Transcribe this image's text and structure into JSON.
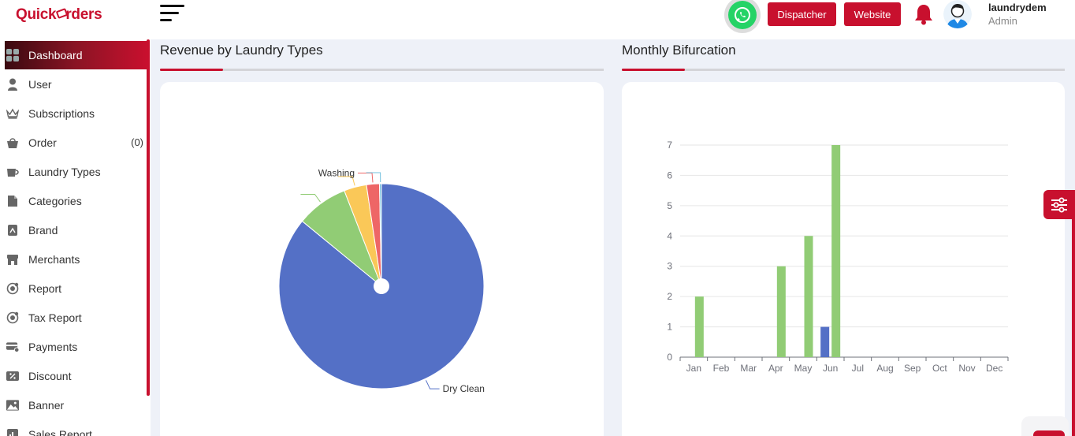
{
  "brand": {
    "logo_part1": "Quick",
    "logo_part2": "rders"
  },
  "sidebar": {
    "items": [
      {
        "label": "Dashboard",
        "icon": "dashboard-icon",
        "active": true
      },
      {
        "label": "User",
        "icon": "user-icon"
      },
      {
        "label": "Subscriptions",
        "icon": "crown-icon"
      },
      {
        "label": "Order",
        "icon": "basket-icon",
        "count": "(0)"
      },
      {
        "label": "Laundry Types",
        "icon": "cup-icon"
      },
      {
        "label": "Categories",
        "icon": "categories-icon"
      },
      {
        "label": "Brand",
        "icon": "brand-icon"
      },
      {
        "label": "Merchants",
        "icon": "store-icon"
      },
      {
        "label": "Report",
        "icon": "report-icon"
      },
      {
        "label": "Tax Report",
        "icon": "tax-report-icon"
      },
      {
        "label": "Payments",
        "icon": "payments-icon"
      },
      {
        "label": "Discount",
        "icon": "discount-icon"
      },
      {
        "label": "Banner",
        "icon": "image-icon"
      },
      {
        "label": "Sales Report",
        "icon": "sales-report-icon"
      }
    ]
  },
  "topbar": {
    "dispatcher_label": "Dispatcher",
    "website_label": "Website",
    "user_name": "laundrydem",
    "user_role": "Admin"
  },
  "colors": {
    "accent": "#c8102e",
    "whatsapp": "#25d366"
  },
  "revenue_panel": {
    "title": "Revenue by Laundry Types"
  },
  "monthly_panel": {
    "title": "Monthly Bifurcation"
  },
  "chart_data": [
    {
      "type": "pie",
      "title": "Revenue by Laundry Types",
      "slices": [
        {
          "label": "Dry Clean",
          "value": 84.3,
          "color": "#5470c6"
        },
        {
          "label": "",
          "value": 8.0,
          "color": "#91cc75"
        },
        {
          "label": "",
          "value": 3.5,
          "color": "#fac858"
        },
        {
          "label": "Washing",
          "value": 2.0,
          "color": "#ee6666"
        },
        {
          "label": "",
          "value": 0.3,
          "color": "#73c0de"
        }
      ]
    },
    {
      "type": "bar",
      "title": "Monthly Bifurcation",
      "categories": [
        "Jan",
        "Feb",
        "Mar",
        "Apr",
        "May",
        "Jun",
        "Jul",
        "Aug",
        "Sep",
        "Oct",
        "Nov",
        "Dec"
      ],
      "series": [
        {
          "values": [
            0,
            0,
            0,
            0,
            0,
            1,
            0,
            0,
            0,
            0,
            0,
            0
          ],
          "color": "#5470c6"
        },
        {
          "values": [
            2,
            0,
            0,
            3,
            4,
            7,
            0,
            0,
            0,
            0,
            0,
            0
          ],
          "color": "#91cc75"
        }
      ],
      "ylim": [
        0,
        7
      ],
      "yticks": [
        0,
        1,
        2,
        3,
        4,
        5,
        6,
        7
      ],
      "grid": true
    }
  ]
}
